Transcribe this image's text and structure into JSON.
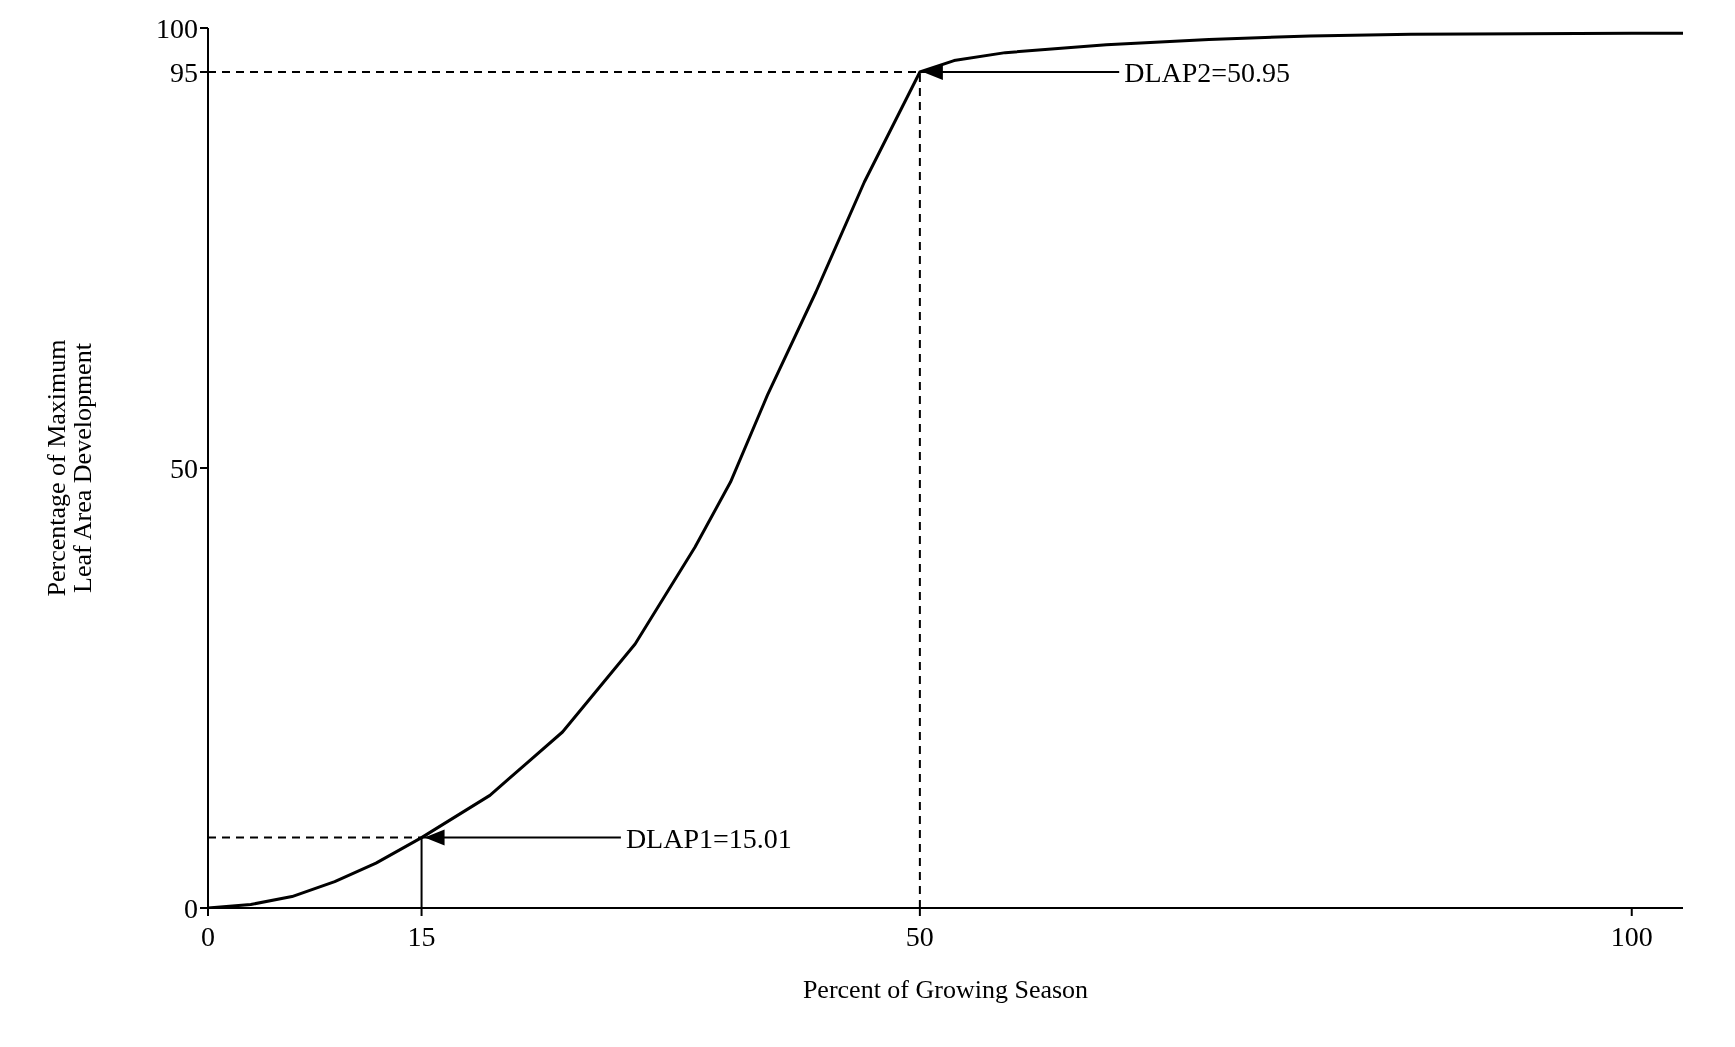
{
  "chart_data": {
    "type": "line",
    "xlabel": "Percent of Growing Season",
    "ylabel": "Percentage of Maximum\nLeaf Area Development",
    "x": [
      0,
      3,
      5.9,
      8.9,
      11.8,
      15,
      19.8,
      24.9,
      30,
      34.2,
      36.7,
      39.3,
      42.7,
      46.1,
      50,
      52.4,
      56,
      63.1,
      70.3,
      77.4,
      84.5,
      100,
      103.6
    ],
    "series": [
      {
        "color": "#000000",
        "values": [
          0,
          0.4,
          1.3,
          3,
          5.1,
          8,
          12.8,
          20,
          30,
          41,
          48.4,
          58.3,
          70,
          82.5,
          95,
          96.3,
          97.2,
          98.1,
          98.7,
          99.1,
          99.3,
          99.4,
          99.4
        ]
      },
      {
        "type": "line",
        "color": "#000000",
        "x": [
          15,
          15
        ],
        "values": [
          0,
          8
        ]
      }
    ],
    "xlim": [
      0,
      103.6
    ],
    "xticks": [
      0,
      15,
      50,
      100
    ],
    "ylim": [
      0,
      100
    ],
    "yticks": [
      0,
      50,
      95,
      100
    ],
    "grid": false,
    "marker": "none",
    "line_style": "solid",
    "ref_lines": [
      {
        "axis": "y",
        "value": 95,
        "line_style": "dashed"
      },
      {
        "axis": "x",
        "value": 50,
        "line_style": "dashed"
      },
      {
        "axis": "y",
        "value": 8,
        "line_style": "dashed"
      }
    ],
    "annotations": [
      {
        "text": "DLAP1=15.01",
        "x": 15,
        "y": 8
      },
      {
        "text": "DLAP2=50.95",
        "x": 50,
        "y": 95
      }
    ]
  }
}
